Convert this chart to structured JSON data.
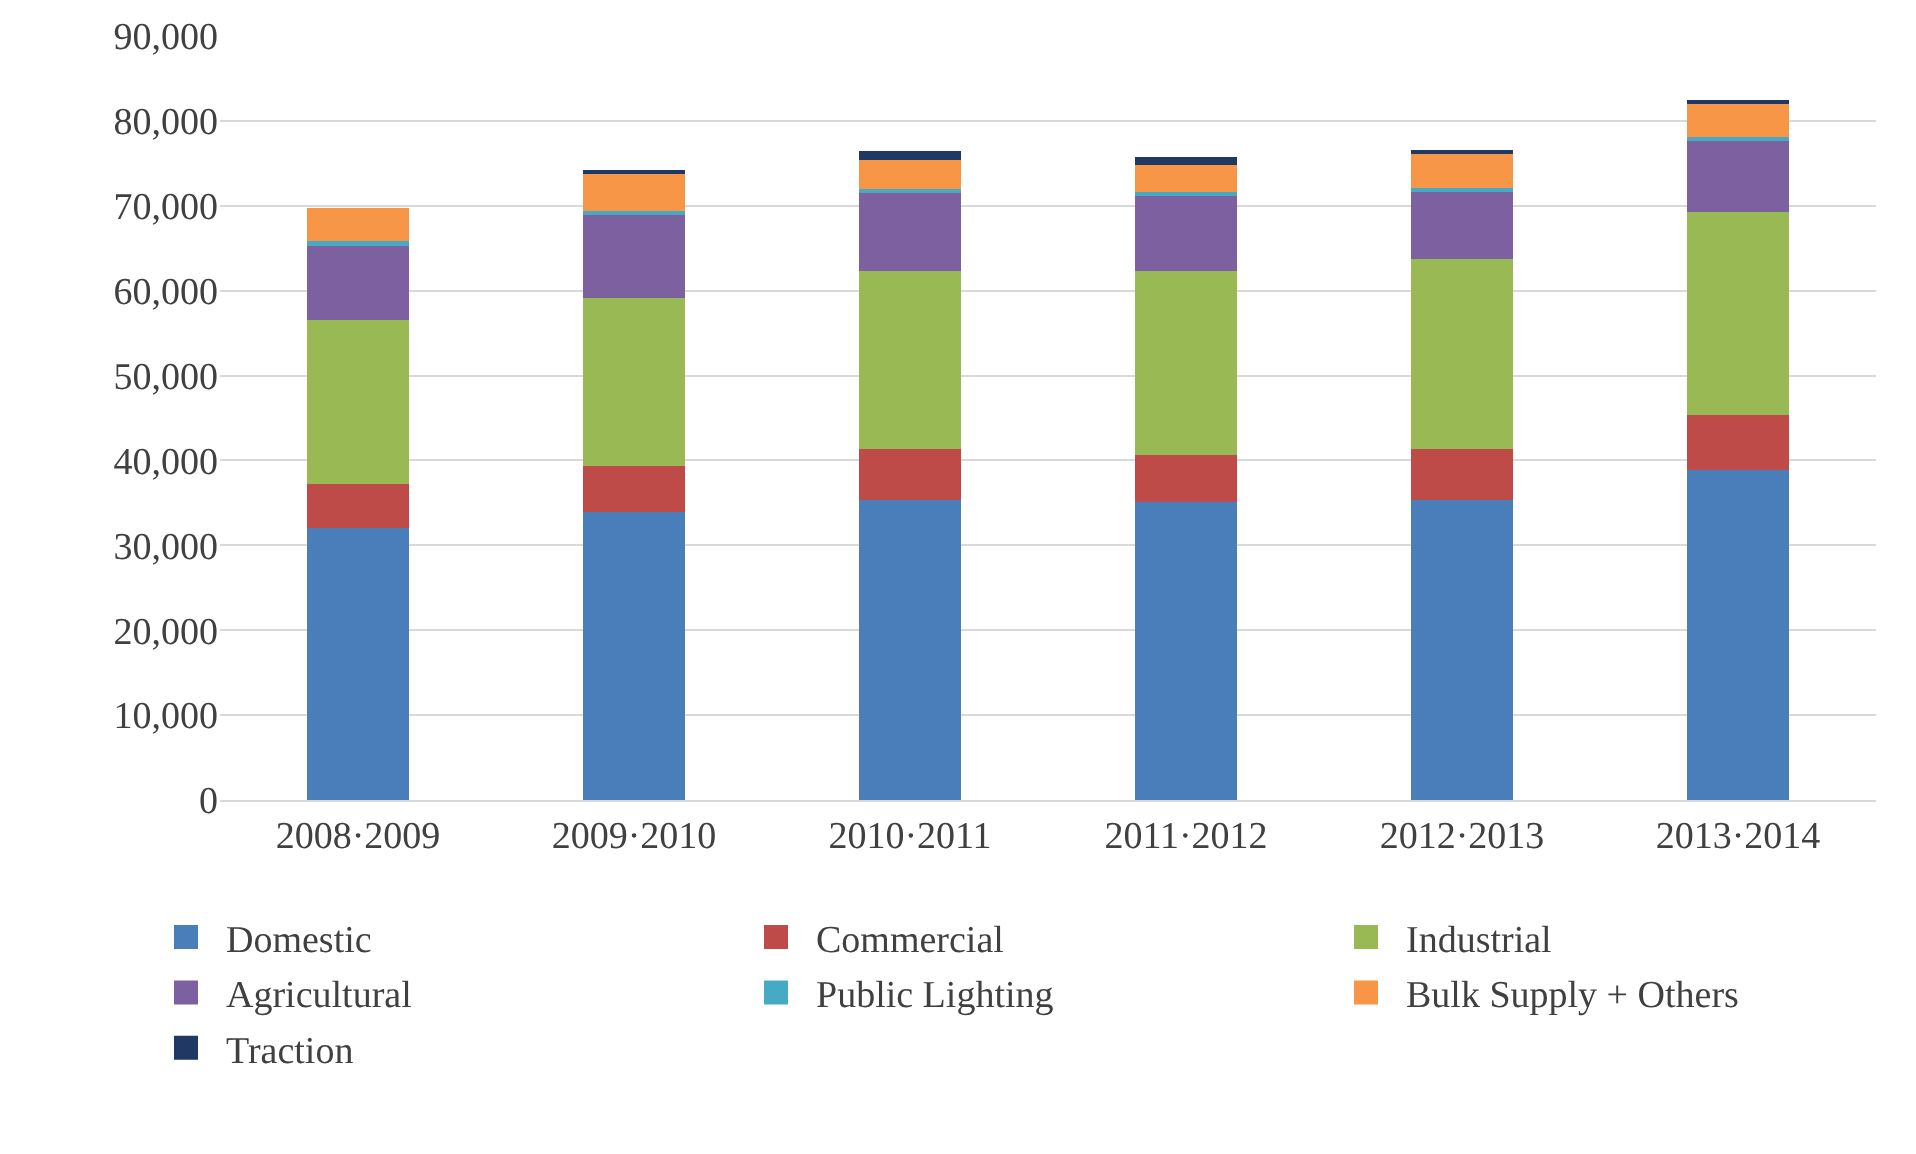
{
  "chart_data": {
    "type": "bar",
    "stacked": true,
    "categories": [
      "2008·2009",
      "2009·2010",
      "2010·2011",
      "2011·2012",
      "2012·2013",
      "2013·2014"
    ],
    "series": [
      {
        "name": "Domestic",
        "color": "#4a7ebb",
        "values": [
          32100,
          33900,
          35400,
          35100,
          35400,
          38900
        ]
      },
      {
        "name": "Commercial",
        "color": "#be4b48",
        "values": [
          5100,
          5500,
          5900,
          5500,
          6000,
          6500
        ]
      },
      {
        "name": "Industrial",
        "color": "#98b954",
        "values": [
          19300,
          19700,
          21000,
          21700,
          22300,
          23900
        ]
      },
      {
        "name": "Agricultural",
        "color": "#7d60a0",
        "values": [
          8900,
          9800,
          9200,
          8800,
          7900,
          8300
        ]
      },
      {
        "name": "Public Lighting",
        "color": "#46aac5",
        "values": [
          400,
          500,
          500,
          500,
          500,
          500
        ]
      },
      {
        "name": "Bulk Supply + Others",
        "color": "#f79646",
        "values": [
          3900,
          4500,
          3400,
          3200,
          4100,
          4100
        ]
      },
      {
        "name": "Traction",
        "color": "#1f3864",
        "values": [
          0,
          300,
          1100,
          1000,
          300,
          200
        ]
      }
    ],
    "ylim": [
      0,
      90000
    ],
    "yticks": [
      {
        "value": 0,
        "label": "0"
      },
      {
        "value": 10000,
        "label": "10,000"
      },
      {
        "value": 20000,
        "label": "20,000"
      },
      {
        "value": 30000,
        "label": "30,000"
      },
      {
        "value": 40000,
        "label": "40,000"
      },
      {
        "value": 50000,
        "label": "50,000"
      },
      {
        "value": 60000,
        "label": "60,000"
      },
      {
        "value": 70000,
        "label": "70,000"
      },
      {
        "value": 80000,
        "label": "80,000"
      },
      {
        "value": 90000,
        "label": "90,000"
      }
    ],
    "grid": "y",
    "legend": "bottom"
  }
}
